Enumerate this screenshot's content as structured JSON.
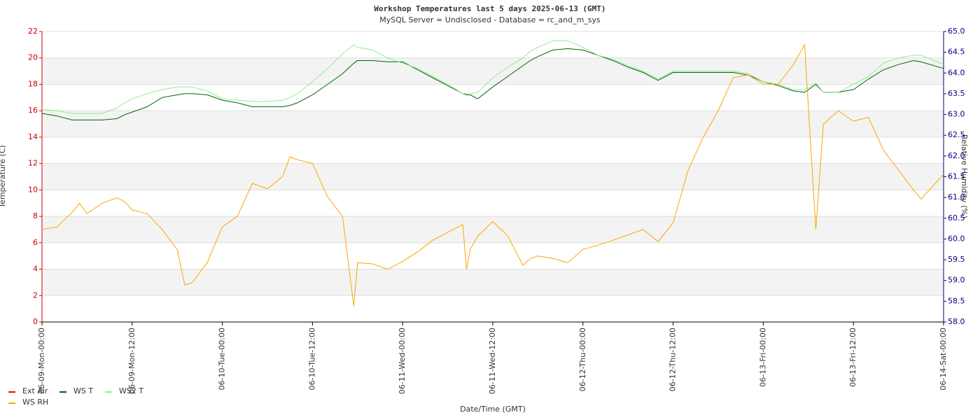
{
  "chart_data": {
    "type": "line",
    "title": "Workshop Temperatures last 5     days 2025-06-13 (GMT)",
    "subtitle": "MySQL Server = Undisclosed - Database = rc_and_m_sys",
    "xlabel": "Date/Time (GMT)",
    "ylabel": "Temperature (C)",
    "y2label": "Relative Humidity (%)",
    "grid": true,
    "legend": "bottom-left",
    "x": [
      0,
      2,
      4,
      5,
      6,
      8,
      10,
      11,
      12,
      14,
      16,
      18,
      19,
      20,
      22,
      24,
      26,
      28,
      30,
      32,
      33,
      34,
      36,
      38,
      40,
      41.5,
      42,
      44,
      46,
      48,
      50,
      52,
      54,
      56,
      56.5,
      57,
      58,
      60,
      62,
      64,
      65,
      66,
      68,
      70,
      72,
      74,
      76,
      78,
      80,
      82,
      84,
      86,
      88,
      90,
      92,
      94,
      96,
      98,
      100,
      101.5,
      103,
      104,
      106,
      108,
      110,
      112,
      114,
      116,
      117,
      120
    ],
    "xlim": [
      0,
      120
    ],
    "xticks": [
      {
        "value": 0,
        "label": "06-09-Mon-00:00"
      },
      {
        "value": 12,
        "label": "06-09-Mon-12:00"
      },
      {
        "value": 24,
        "label": "06-10-Tue-00:00"
      },
      {
        "value": 36,
        "label": "06-10-Tue-12:00"
      },
      {
        "value": 48,
        "label": "06-11-Wed-00:00"
      },
      {
        "value": 60,
        "label": "06-11-Wed-12:00"
      },
      {
        "value": 72,
        "label": "06-12-Thu-00:00"
      },
      {
        "value": 84,
        "label": "06-12-Thu-12:00"
      },
      {
        "value": 96,
        "label": "06-13-Fri-00:00"
      },
      {
        "value": 108,
        "label": "06-13-Fri-12:00"
      },
      {
        "value": 120,
        "label": "06-14-Sat-00:00"
      }
    ],
    "ylim": [
      0,
      22
    ],
    "yticks": [
      0,
      2,
      4,
      6,
      8,
      10,
      12,
      14,
      16,
      18,
      20,
      22
    ],
    "y2lim": [
      58,
      65
    ],
    "y2ticks": [
      {
        "value": 58,
        "label": "58.0"
      },
      {
        "value": 58.5,
        "label": "58.5"
      },
      {
        "value": 59,
        "label": "59.0"
      },
      {
        "value": 59.5,
        "label": "59.5"
      },
      {
        "value": 60,
        "label": "60.0"
      },
      {
        "value": 60.5,
        "label": "60.5"
      },
      {
        "value": 61,
        "label": "61.0"
      },
      {
        "value": 61.5,
        "label": "61.5"
      },
      {
        "value": 62,
        "label": "62.0"
      },
      {
        "value": 62.5,
        "label": "62.5"
      },
      {
        "value": 63,
        "label": "63.0"
      },
      {
        "value": 63.5,
        "label": "63.5"
      },
      {
        "value": 64,
        "label": "64.0"
      },
      {
        "value": 64.5,
        "label": "64.5"
      },
      {
        "value": 65,
        "label": "65.0"
      }
    ],
    "series": [
      {
        "name": "Ext Air",
        "color": "#ff0000",
        "values": [
          null,
          null,
          null,
          null,
          null,
          null,
          null,
          null,
          null,
          null,
          null,
          null,
          null,
          null,
          null,
          null,
          null,
          null,
          null,
          null,
          null,
          null,
          null,
          null,
          null,
          null,
          null,
          null,
          null,
          null,
          null,
          null,
          null,
          null,
          null,
          null,
          null,
          null,
          null,
          null,
          null,
          null,
          null,
          null,
          null,
          null,
          null,
          null,
          null,
          null,
          null,
          null,
          null,
          null,
          null,
          null,
          null,
          null,
          null,
          null,
          null,
          null,
          null,
          null,
          null,
          null,
          null,
          null,
          null,
          null
        ]
      },
      {
        "name": "WS T",
        "color": "#006400",
        "values": [
          15.8,
          15.6,
          15.3,
          15.3,
          15.3,
          15.3,
          15.4,
          15.7,
          15.9,
          16.3,
          17,
          17.2,
          17.3,
          17.3,
          17.2,
          16.8,
          16.6,
          16.3,
          16.3,
          16.3,
          16.4,
          16.6,
          17.2,
          18,
          18.8,
          19.6,
          19.8,
          19.8,
          19.7,
          19.7,
          19.1,
          18.5,
          17.9,
          17.3,
          17.2,
          17.2,
          16.9,
          17.8,
          18.6,
          19.4,
          19.8,
          20.1,
          20.6,
          20.7,
          20.6,
          20.2,
          19.8,
          19.3,
          18.9,
          18.3,
          18.9,
          18.9,
          18.9,
          18.9,
          18.9,
          18.7,
          18.2,
          17.9,
          17.5,
          17.4,
          18,
          17.4,
          17.4,
          17.6,
          18.4,
          19.1,
          19.5,
          19.8,
          19.7,
          19.2
        ]
      },
      {
        "name": "WS2 T",
        "color": "#90ee90",
        "values": [
          16.1,
          16,
          15.8,
          15.8,
          15.8,
          15.8,
          16.2,
          16.6,
          16.9,
          17.3,
          17.6,
          17.8,
          17.8,
          17.8,
          17.5,
          16.9,
          16.8,
          16.7,
          16.7,
          16.8,
          17,
          17.3,
          18.2,
          19.2,
          20.3,
          21,
          20.8,
          20.6,
          20,
          19.6,
          19.2,
          18.6,
          18,
          17.3,
          17.3,
          17.3,
          17.4,
          18.5,
          19.3,
          20,
          20.5,
          20.8,
          21.3,
          21.3,
          20.8,
          20.2,
          19.9,
          19.4,
          19,
          18.4,
          19,
          19,
          19,
          19,
          19,
          18.8,
          18.2,
          18,
          17.6,
          17.6,
          18.1,
          17.4,
          17.4,
          18,
          18.6,
          19.6,
          20,
          20.2,
          20.2,
          19.5
        ]
      },
      {
        "name": "WS RH",
        "color": "#ffa500",
        "axis": "y2",
        "values": [
          60.23,
          60.29,
          60.64,
          60.86,
          60.61,
          60.86,
          60.99,
          60.9,
          60.7,
          60.61,
          60.23,
          59.75,
          58.89,
          58.95,
          59.43,
          60.29,
          60.55,
          61.34,
          61.21,
          61.5,
          61.98,
          61.91,
          61.82,
          61.02,
          60.55,
          58.38,
          59.43,
          59.4,
          59.27,
          59.46,
          59.69,
          59.97,
          60.16,
          60.35,
          59.27,
          59.75,
          60.07,
          60.42,
          60.07,
          59.37,
          59.53,
          59.59,
          59.53,
          59.43,
          59.75,
          59.85,
          59.97,
          60.1,
          60.23,
          59.94,
          60.39,
          61.66,
          62.45,
          63.09,
          63.89,
          63.95,
          63.73,
          63.73,
          64.2,
          64.68,
          60.23,
          62.77,
          63.09,
          62.84,
          62.93,
          62.14,
          61.66,
          61.18,
          60.96,
          61.56
        ]
      }
    ]
  }
}
